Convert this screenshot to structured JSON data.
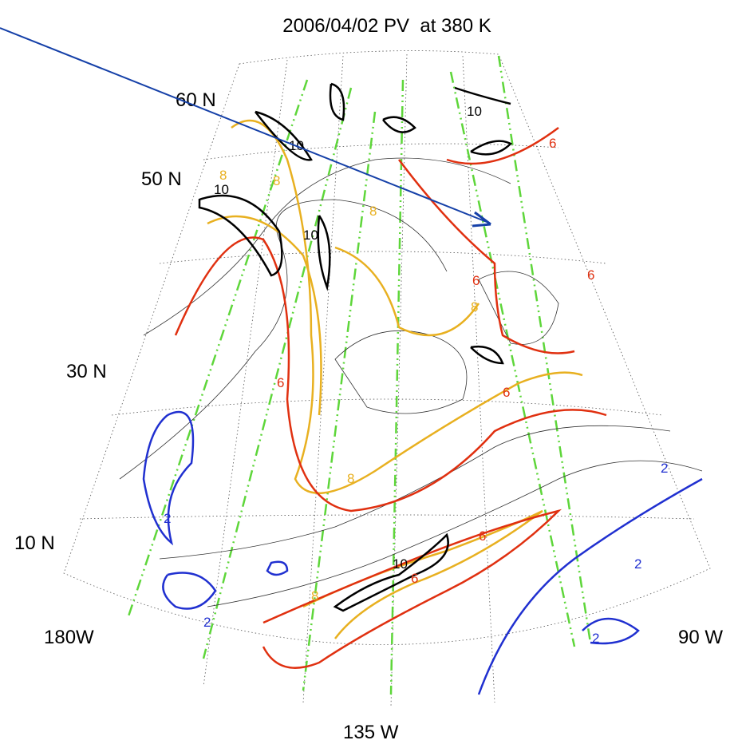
{
  "title": "2006/04/02 PV  at 380 K",
  "latitude_labels": [
    "60 N",
    "50 N",
    "30 N",
    "10 N"
  ],
  "longitude_labels": [
    "180W",
    "135 W",
    "90 W"
  ],
  "contour_labels": [
    "10",
    "10",
    "10",
    "10",
    "10",
    "8",
    "8",
    "8",
    "8",
    "8",
    "8",
    "6",
    "6",
    "6",
    "6",
    "6",
    "6",
    "6",
    "2",
    "2",
    "2",
    "2",
    "2"
  ]
}
